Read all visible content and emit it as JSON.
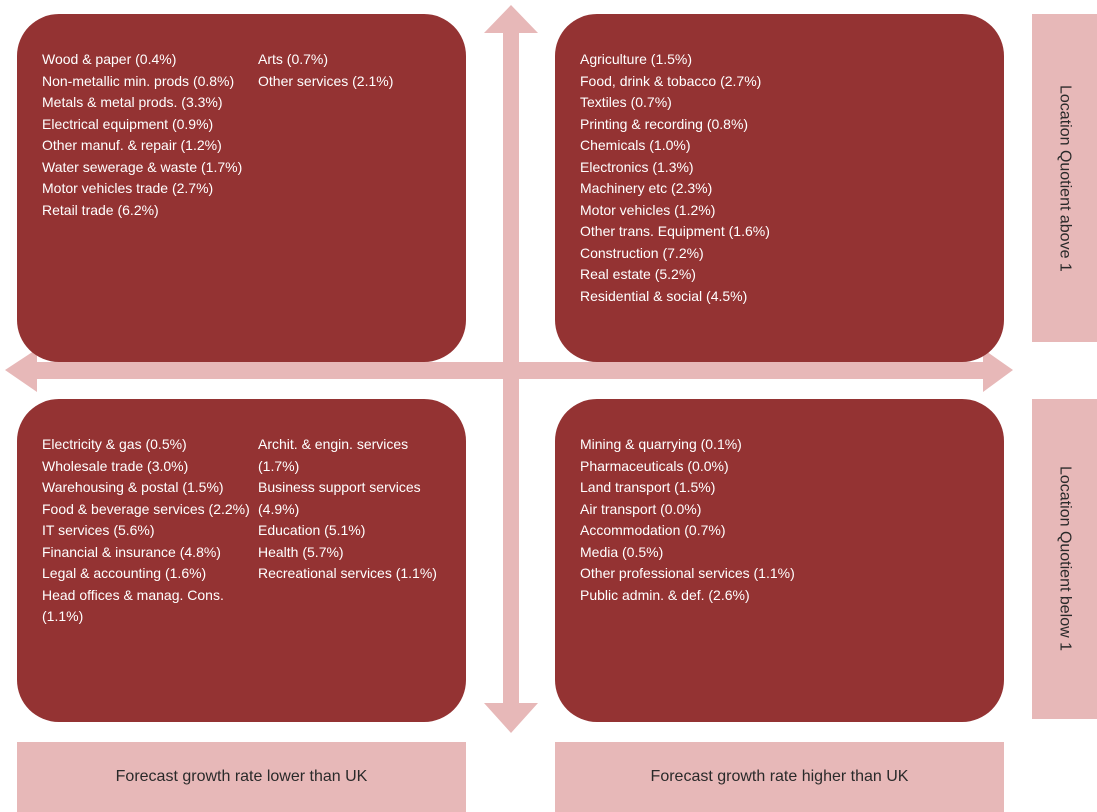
{
  "quadrants": {
    "top_left": {
      "col1": [
        "Wood & paper (0.4%)",
        "Non-metallic min. prods (0.8%)",
        "Metals & metal prods. (3.3%)",
        "Electrical equipment (0.9%)",
        "Other manuf. & repair (1.2%)",
        "Water sewerage & waste (1.7%)",
        "Motor vehicles trade (2.7%)",
        "Retail trade (6.2%)"
      ],
      "col2": [
        "Arts (0.7%)",
        "Other services (2.1%)"
      ]
    },
    "top_right": {
      "col1": [
        "Agriculture (1.5%)",
        "Food, drink & tobacco (2.7%)",
        "Textiles (0.7%)",
        "Printing & recording (0.8%)",
        "Chemicals (1.0%)",
        "Electronics (1.3%)",
        "Machinery etc (2.3%)",
        "Motor vehicles (1.2%)",
        "Other trans. Equipment (1.6%)",
        "Construction (7.2%)",
        "Real estate (5.2%)",
        "Residential & social (4.5%)"
      ]
    },
    "bottom_left": {
      "col1": [
        "Electricity & gas (0.5%)",
        "Wholesale trade (3.0%)",
        "Warehousing & postal (1.5%)",
        "Food & beverage services (2.2%)",
        "IT services (5.6%)",
        "Financial & insurance (4.8%)",
        "Legal & accounting (1.6%)",
        "Head offices & manag. Cons. (1.1%)"
      ],
      "col2": [
        "Archit. & engin. services (1.7%)",
        "Business support services (4.9%)",
        "Education (5.1%)",
        "Health (5.7%)",
        "Recreational services (1.1%)"
      ]
    },
    "bottom_right": {
      "col1": [
        "Mining & quarrying (0.1%)",
        "Pharmaceuticals (0.0%)",
        "Land transport (1.5%)",
        "Air transport (0.0%)",
        "Accommodation (0.7%)",
        "Media (0.5%)",
        "Other professional services (1.1%)",
        "Public admin. & def. (2.6%)"
      ]
    }
  },
  "axis_labels": {
    "x_low": "Forecast growth rate lower than UK",
    "x_high": "Forecast growth rate higher than UK",
    "y_high": "Location Quotient above 1",
    "y_low": "Location Quotient below 1"
  },
  "colors": {
    "quadrant_fill": "#943333",
    "label_fill": "#e7b8b8",
    "arrow_fill": "#e7b8b8"
  }
}
